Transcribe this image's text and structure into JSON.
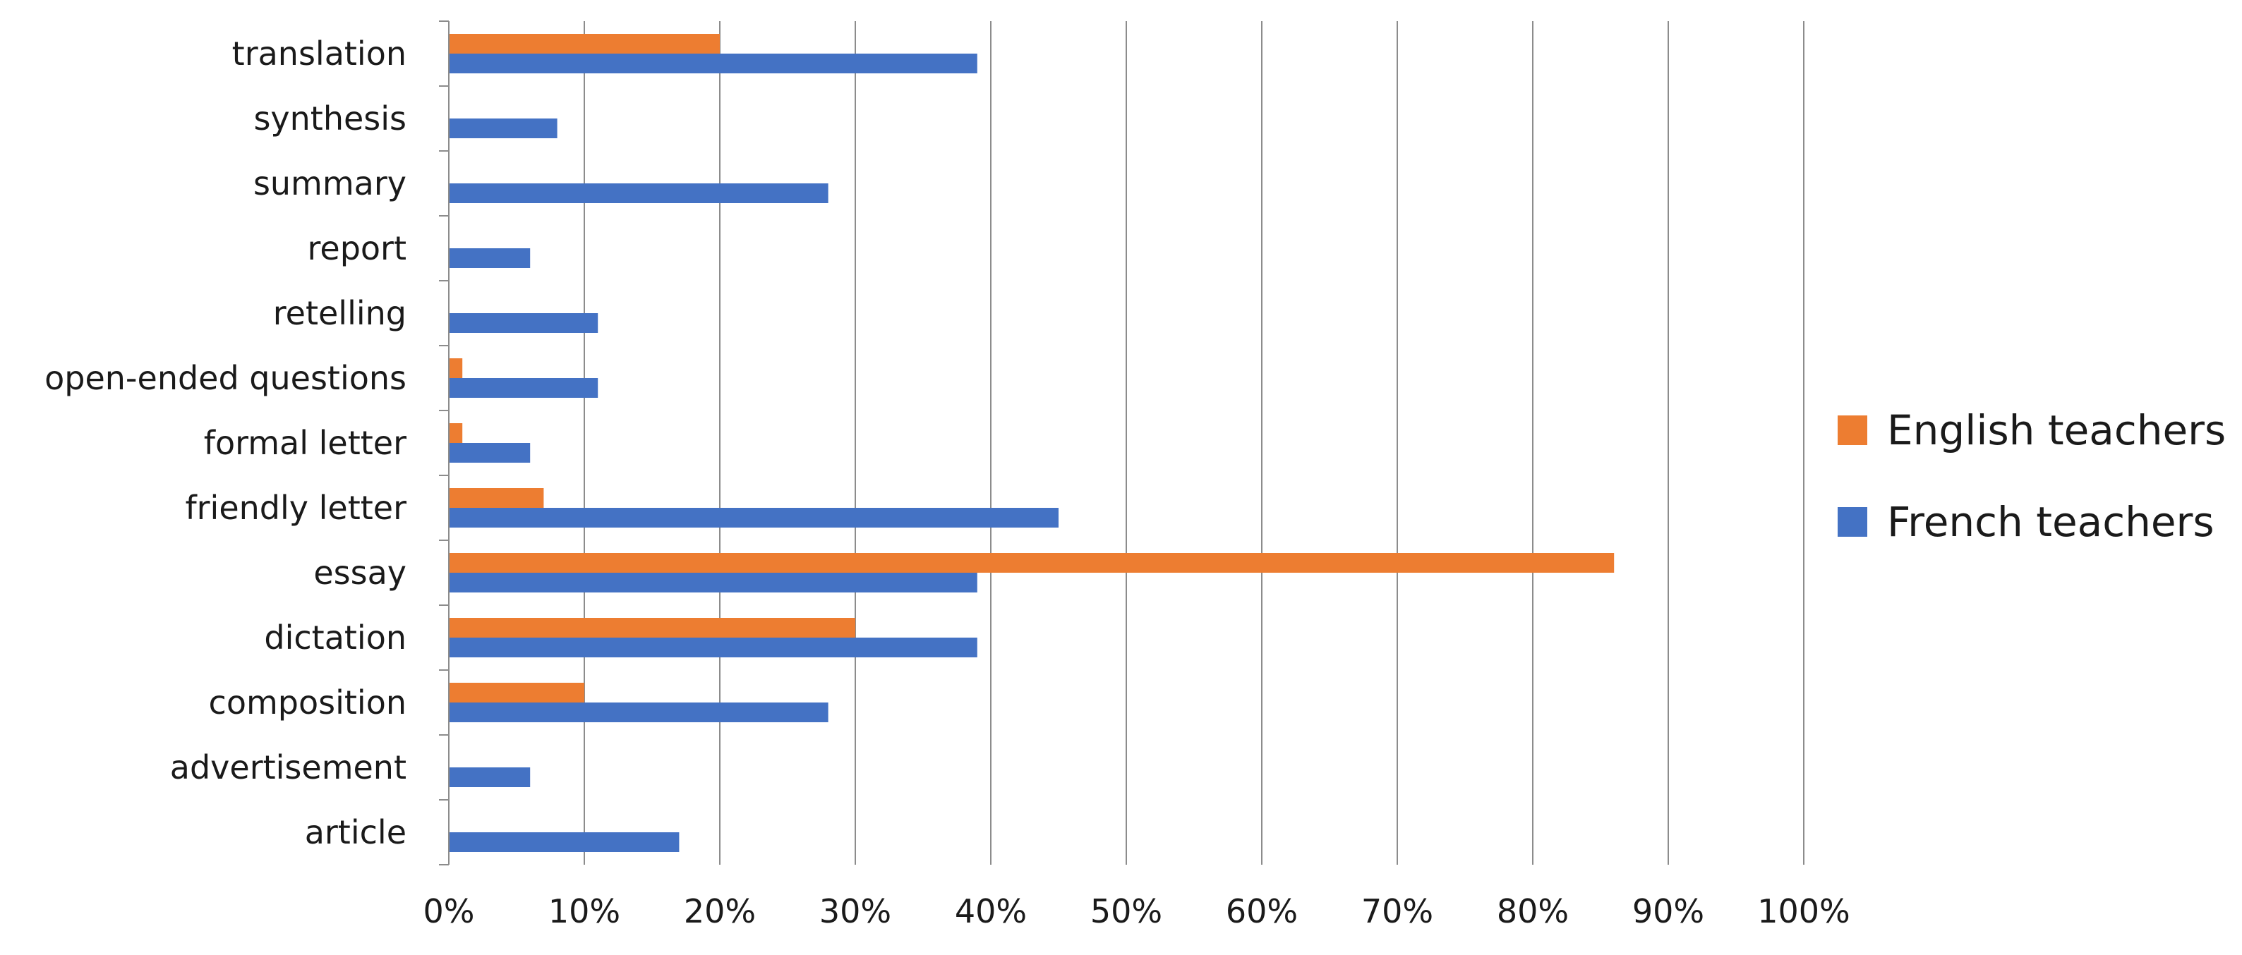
{
  "chart_data": {
    "type": "bar",
    "orientation": "horizontal",
    "categories": [
      "translation",
      "synthesis",
      "summary",
      "report",
      "retelling",
      "open-ended questions",
      "formal letter",
      "friendly letter",
      "essay",
      "dictation",
      "composition",
      "advertisement",
      "article"
    ],
    "series": [
      {
        "name": "English teachers",
        "color": "#ED7D31",
        "values": [
          20,
          0,
          0,
          0,
          0,
          1,
          1,
          7,
          86,
          30,
          10,
          0,
          0
        ]
      },
      {
        "name": "French teachers",
        "color": "#4472C4",
        "values": [
          39,
          8,
          28,
          6,
          11,
          11,
          6,
          45,
          39,
          39,
          28,
          6,
          17
        ]
      }
    ],
    "x_ticks": [
      "0%",
      "10%",
      "20%",
      "30%",
      "40%",
      "50%",
      "60%",
      "70%",
      "80%",
      "90%",
      "100%"
    ],
    "xlim": [
      0,
      100
    ],
    "grid": "vertical",
    "legend_position": "right",
    "gridline_color": "#8c8c8c",
    "axis_color": "#8c8c8c"
  }
}
